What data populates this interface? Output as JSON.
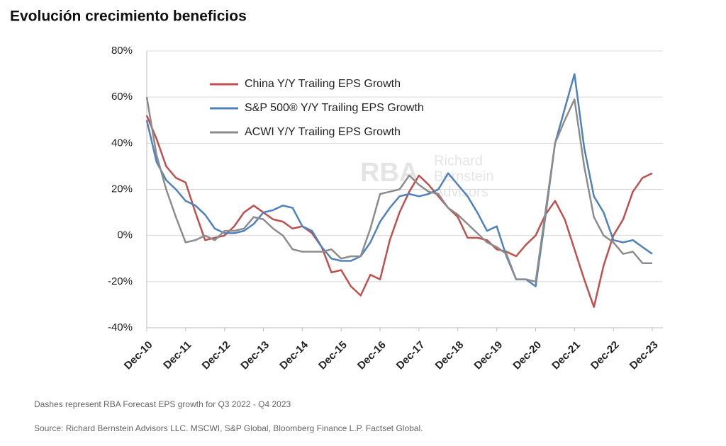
{
  "title": "Evolución crecimiento beneficios",
  "chart_data": {
    "type": "line",
    "categories": [
      "Dec-10",
      null,
      null,
      null,
      "Dec-11",
      null,
      null,
      null,
      "Dec-12",
      null,
      null,
      null,
      "Dec-13",
      null,
      null,
      null,
      "Dec-14",
      null,
      null,
      null,
      "Dec-15",
      null,
      null,
      null,
      "Dec-16",
      null,
      null,
      null,
      "Dec-17",
      null,
      null,
      null,
      "Dec-18",
      null,
      null,
      null,
      "Dec-19",
      null,
      null,
      null,
      "Dec-20",
      null,
      null,
      null,
      "Dec-21",
      null,
      null,
      null,
      "Dec-22",
      null,
      null,
      null,
      "Dec-23"
    ],
    "series": [
      {
        "name": "China Y/Y Trailing EPS Growth",
        "color": "#c0504d",
        "values": [
          52,
          42,
          30,
          25,
          23,
          10,
          -2,
          -1,
          0,
          4,
          10,
          13,
          10,
          7,
          6,
          3,
          4,
          1,
          -5,
          -16,
          -15,
          -22,
          -26,
          -17,
          -19,
          -2,
          10,
          19,
          26,
          22,
          17,
          12,
          8,
          -1,
          -1,
          -2,
          -6,
          -7,
          -9,
          -4,
          0,
          9,
          15,
          7,
          -6,
          -19,
          -31,
          -13,
          0,
          7,
          19,
          25,
          27
        ]
      },
      {
        "name": "S&P 500® Y/Y Trailing EPS Growth",
        "color": "#4f81bd",
        "values": [
          50,
          32,
          24,
          20,
          15,
          13,
          9,
          3,
          1,
          1,
          2,
          5,
          10,
          11,
          13,
          12,
          4,
          2,
          -5,
          -10,
          -11,
          -11,
          -9,
          -3,
          6,
          12,
          17,
          18,
          17,
          18,
          20,
          27,
          22,
          17,
          10,
          2,
          4,
          -9,
          -19,
          -19,
          -22,
          8,
          40,
          55,
          70,
          38,
          17,
          10,
          -2,
          -3,
          -2,
          -5,
          -8
        ]
      },
      {
        "name": "ACWI Y/Y Trailing EPS Growth",
        "color": "#8c8c8c",
        "values": [
          60,
          35,
          20,
          8,
          -3,
          -2,
          0,
          -2,
          2,
          2,
          3,
          8,
          7,
          3,
          0,
          -6,
          -7,
          -7,
          -7,
          -6,
          -10,
          -9,
          -9,
          3,
          18,
          19,
          20,
          26,
          22,
          19,
          18,
          12,
          9,
          5,
          1,
          -3,
          -5,
          -8,
          -19,
          -19,
          -20,
          10,
          40,
          50,
          59,
          30,
          8,
          0,
          -3,
          -8,
          -7,
          -12,
          -12
        ]
      }
    ],
    "ylim": [
      -40,
      80
    ],
    "yticks": [
      {
        "value": -40,
        "label": "-40%"
      },
      {
        "value": -20,
        "label": "-20%"
      },
      {
        "value": 0,
        "label": "0%"
      },
      {
        "value": 20,
        "label": "20%"
      },
      {
        "value": 40,
        "label": "40%"
      },
      {
        "value": 60,
        "label": "60%"
      },
      {
        "value": 80,
        "label": "80%"
      }
    ],
    "grid": true,
    "legend": "upper-left",
    "watermark": [
      "RBA",
      "Richard",
      "Bernstein",
      "Advisors"
    ],
    "note": "Dashes represent RBA Forecast EPS growth for Q3 2022 - Q4 2023",
    "source": "Source:  Richard Bernstein Advisors LLC. MSCWI, S&P Global, Bloomberg Finance L.P. Factset Global."
  }
}
